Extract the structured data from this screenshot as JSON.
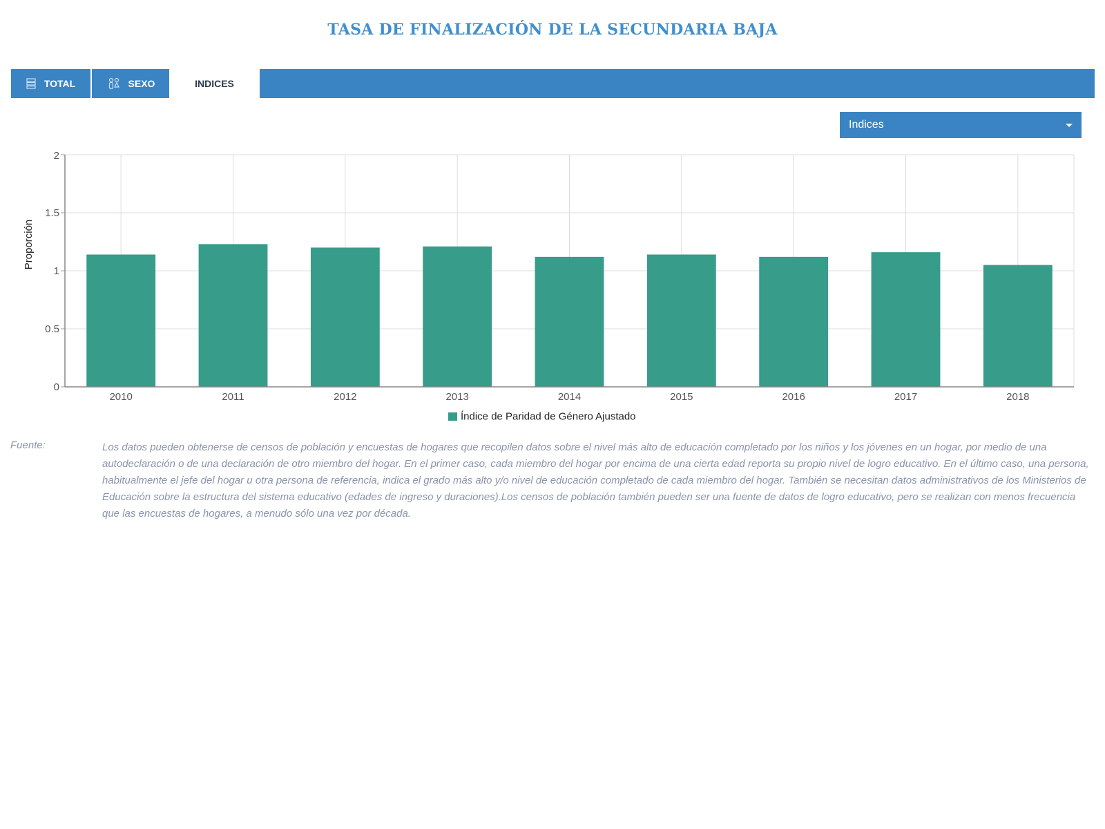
{
  "page": {
    "title": "TASA DE FINALIZACIÓN DE LA SECUNDARIA BAJA"
  },
  "tabs": [
    {
      "label": "TOTAL",
      "icon": "stacked-bars-icon",
      "active": false
    },
    {
      "label": "SEXO",
      "icon": "gender-icon",
      "active": false
    },
    {
      "label": "INDICES",
      "icon": "",
      "active": true
    }
  ],
  "select": {
    "value": "Indices",
    "icon": "caret-down-icon"
  },
  "colors": {
    "accent": "#3a84c4",
    "title": "#3f8fd0",
    "bar": "#379c8a",
    "source_text": "#8a93ad"
  },
  "chart_data": {
    "type": "bar",
    "categories": [
      "2010",
      "2011",
      "2012",
      "2013",
      "2014",
      "2015",
      "2016",
      "2017",
      "2018"
    ],
    "series": [
      {
        "name": "Índice de Paridad de Género Ajustado",
        "values": [
          1.14,
          1.23,
          1.2,
          1.21,
          1.12,
          1.14,
          1.12,
          1.16,
          1.05
        ]
      }
    ],
    "xlabel": "",
    "ylabel": "Proporción",
    "ylim": [
      0,
      2
    ],
    "yticks": [
      0,
      0.5,
      1,
      1.5,
      2
    ],
    "ytick_labels": [
      "0",
      "0.5",
      "1",
      "1.5",
      "2"
    ],
    "grid": true,
    "legend_position": "bottom-center"
  },
  "source": {
    "label": "Fuente:",
    "text": "Los datos pueden obtenerse de censos de población y encuestas de hogares que recopilen datos sobre el nivel más alto de educación completado por los niños y los jóvenes en un hogar, por medio de una autodeclaración o de una declaración de otro miembro del hogar. En el primer caso, cada miembro del hogar por encima de una cierta edad reporta su propio nivel de logro educativo. En el último caso, una persona, habitualmente el jefe del hogar u otra persona de referencia, indica el grado más alto y/o nivel de educación completado de cada miembro del hogar. También se necesitan datos administrativos de los Ministerios de Educación sobre la estructura del sistema educativo (edades de ingreso y duraciones).Los censos de población también pueden ser una fuente de datos de logro educativo, pero se realizan con menos frecuencia que las encuestas de hogares, a menudo sólo una vez por década."
  }
}
